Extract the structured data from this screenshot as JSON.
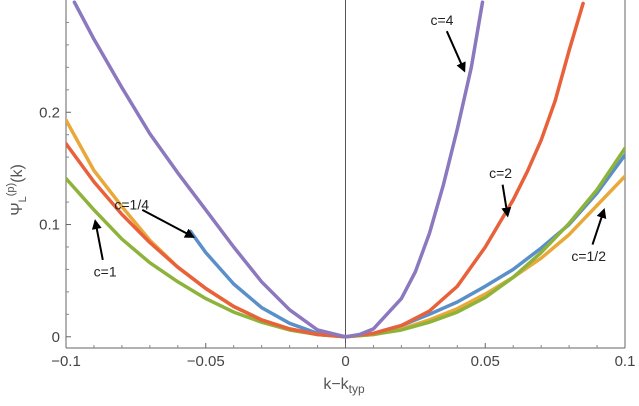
{
  "chart_data": {
    "type": "line",
    "title": "",
    "xlabel": "k−k_typ",
    "xlabel_main": "k−k",
    "xlabel_sub": "typ",
    "ylabel": "Ψ_L^(p)(k)",
    "ylabel_main": "Ψ",
    "ylabel_sub": "L",
    "ylabel_sup": "(p)",
    "ylabel_tail": "(k)",
    "xlim": [
      -0.1,
      0.1
    ],
    "ylim": [
      -0.01,
      0.3
    ],
    "x_ticks": [
      -0.1,
      -0.05,
      0,
      0.05,
      0.1
    ],
    "x_tick_labels": [
      "−0.1",
      "−0.05",
      "0",
      "0.05",
      "0.1"
    ],
    "y_ticks": [
      0,
      0.1,
      0.2
    ],
    "y_tick_labels": [
      "0",
      "0.1",
      "0.2"
    ],
    "grid": false,
    "series": [
      {
        "name": "c=1/2",
        "color": "#E8A93A",
        "x": [
          -0.1,
          -0.09,
          -0.08,
          -0.07,
          -0.06,
          -0.05,
          -0.04,
          -0.03,
          -0.02,
          -0.01,
          0,
          0.01,
          0.02,
          0.03,
          0.04,
          0.05,
          0.06,
          0.07,
          0.08,
          0.09,
          0.1
        ],
        "y": [
          0.193,
          0.148,
          0.116,
          0.086,
          0.062,
          0.043,
          0.027,
          0.015,
          0.007,
          0.002,
          0,
          0.002,
          0.007,
          0.015,
          0.025,
          0.038,
          0.053,
          0.07,
          0.091,
          0.117,
          0.143
        ]
      },
      {
        "name": "c=1/4",
        "color": "#5B8FC8",
        "x": [
          -0.0555,
          -0.05,
          -0.04,
          -0.03,
          -0.02,
          -0.01,
          0,
          0.01,
          0.02,
          0.03,
          0.04,
          0.05,
          0.06,
          0.07,
          0.08,
          0.09,
          0.1
        ],
        "y": [
          0.094,
          0.075,
          0.047,
          0.026,
          0.012,
          0.003,
          0,
          0.003,
          0.01,
          0.02,
          0.031,
          0.045,
          0.06,
          0.079,
          0.1,
          0.128,
          0.162
        ]
      },
      {
        "name": "c=1",
        "color": "#8DB33A",
        "x": [
          -0.1,
          -0.09,
          -0.08,
          -0.07,
          -0.06,
          -0.05,
          -0.04,
          -0.03,
          -0.02,
          -0.01,
          0,
          0.01,
          0.02,
          0.03,
          0.04,
          0.05,
          0.06,
          0.07,
          0.08,
          0.09,
          0.1
        ],
        "y": [
          0.141,
          0.113,
          0.087,
          0.066,
          0.049,
          0.034,
          0.022,
          0.013,
          0.006,
          0.002,
          0,
          0.002,
          0.006,
          0.013,
          0.022,
          0.035,
          0.053,
          0.075,
          0.101,
          0.131,
          0.168
        ]
      },
      {
        "name": "c=2",
        "color": "#E8613A",
        "x": [
          -0.1,
          -0.09,
          -0.08,
          -0.07,
          -0.06,
          -0.05,
          -0.04,
          -0.03,
          -0.02,
          -0.01,
          0,
          0.01,
          0.02,
          0.03,
          0.04,
          0.05,
          0.06,
          0.065,
          0.07,
          0.075,
          0.08,
          0.085
        ],
        "y": [
          0.172,
          0.138,
          0.109,
          0.084,
          0.062,
          0.043,
          0.027,
          0.015,
          0.007,
          0.002,
          0,
          0.003,
          0.01,
          0.023,
          0.045,
          0.08,
          0.122,
          0.147,
          0.175,
          0.21,
          0.255,
          0.297
        ]
      },
      {
        "name": "c=4",
        "color": "#8B78BE",
        "x": [
          -0.097,
          -0.09,
          -0.08,
          -0.07,
          -0.06,
          -0.05,
          -0.04,
          -0.03,
          -0.02,
          -0.01,
          0,
          0.005,
          0.01,
          0.02,
          0.025,
          0.03,
          0.035,
          0.04,
          0.045,
          0.049
        ],
        "y": [
          0.298,
          0.265,
          0.222,
          0.181,
          0.146,
          0.113,
          0.08,
          0.049,
          0.024,
          0.006,
          0,
          0.002,
          0.007,
          0.034,
          0.058,
          0.092,
          0.135,
          0.185,
          0.24,
          0.298
        ]
      }
    ],
    "annotations": [
      {
        "text": "c=1/4",
        "series": "c=1/4",
        "tx": -0.0765,
        "ty": 0.118,
        "ax": -0.0545,
        "ay": 0.089
      },
      {
        "text": "c=1",
        "series": "c=1",
        "tx": -0.086,
        "ty": 0.058,
        "ax": -0.0895,
        "ay": 0.103
      },
      {
        "text": "c=4",
        "series": "c=4",
        "tx": 0.0345,
        "ty": 0.282,
        "ax": 0.0425,
        "ay": 0.237
      },
      {
        "text": "c=2",
        "series": "c=2",
        "tx": 0.0555,
        "ty": 0.146,
        "ax": 0.058,
        "ay": 0.108
      },
      {
        "text": "c=1/2",
        "series": "c=1/2",
        "tx": 0.087,
        "ty": 0.072,
        "ax": 0.0925,
        "ay": 0.113
      }
    ]
  }
}
